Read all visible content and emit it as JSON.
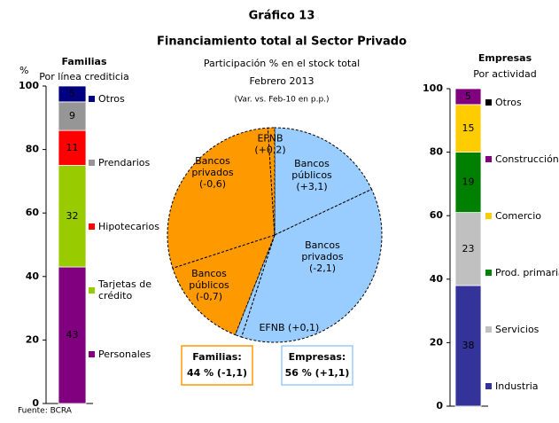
{
  "title": "Gráfico 13",
  "subtitle": "Financiamiento total al Sector Privado",
  "source": "Fuente: BCRA",
  "chart_data": [
    {
      "type": "stacked-bar",
      "title": "Familias",
      "subtitle": "Por línea crediticia",
      "y_label": "%",
      "ylim": [
        0,
        100
      ],
      "yticks": [
        0,
        20,
        40,
        60,
        80,
        100
      ],
      "series": [
        {
          "name": "Personales",
          "color": "#800080",
          "values": [
            43
          ]
        },
        {
          "name": "Tarjetas de crédito",
          "color": "#99cc00",
          "values": [
            32
          ]
        },
        {
          "name": "Hipotecarios",
          "color": "#ff0000",
          "values": [
            11
          ]
        },
        {
          "name": "Prendarios",
          "color": "#969696",
          "values": [
            9
          ]
        },
        {
          "name": "Otros",
          "color": "#000080",
          "values": [
            5
          ]
        }
      ]
    },
    {
      "type": "pie",
      "title": "Participación % en el stock total",
      "subtitle": "Febrero 2013",
      "note": "(Var. vs. Feb-10 en p.p.)",
      "series": [
        {
          "name": "Empresas:",
          "summary": "56 % (+1,1)",
          "color": "#99ccff",
          "text_color": "#3399ff",
          "values": [
            18,
            37,
            1
          ],
          "labels": [
            "Bancos públicos",
            "Bancos privados",
            "EFNB"
          ],
          "changes": [
            "(+3,1)",
            "(-2,1)",
            "(+0,1)"
          ]
        },
        {
          "name": "Familias:",
          "summary": "44 % (-1,1)",
          "color": "#ff9900",
          "text_color": "#ff8c00",
          "values": [
            14,
            29,
            1
          ],
          "labels": [
            "Bancos públicos",
            "Bancos privados",
            "EFNB"
          ],
          "changes": [
            "(-0,7)",
            "(-0,6)",
            "(+0,2)"
          ]
        }
      ]
    },
    {
      "type": "stacked-bar",
      "title": "Empresas",
      "subtitle": "Por actividad",
      "ylim": [
        0,
        100
      ],
      "yticks": [
        0,
        20,
        40,
        60,
        80,
        100
      ],
      "series": [
        {
          "name": "Industria",
          "color": "#333399",
          "values": [
            38
          ]
        },
        {
          "name": "Servicios",
          "color": "#c0c0c0",
          "values": [
            23
          ]
        },
        {
          "name": "Prod. primaria",
          "color": "#008000",
          "values": [
            19
          ]
        },
        {
          "name": "Comercio",
          "color": "#ffcc00",
          "values": [
            15
          ]
        },
        {
          "name": "Construcción",
          "color": "#800080",
          "values": [
            5
          ]
        },
        {
          "name": "Otros",
          "color": "#000000",
          "values": [
            0
          ]
        }
      ]
    }
  ]
}
